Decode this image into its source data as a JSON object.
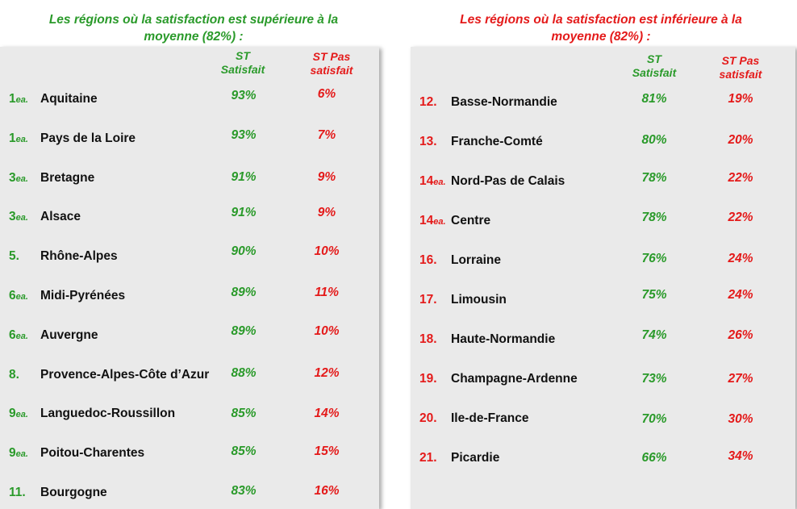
{
  "left": {
    "title_line1": "Les régions où la satisfaction est supérieure à la",
    "title_line2": "moyenne (82%) :",
    "col_satisfait_line1": "ST",
    "col_satisfait_line2": "Satisfait",
    "col_pas_line1": "ST Pas",
    "col_pas_line2": "satisfait",
    "rows": [
      {
        "rank": "1",
        "suffix": "ea.",
        "region": "Aquitaine",
        "satisfait": "93%",
        "pas": "6%"
      },
      {
        "rank": "1",
        "suffix": "ea.",
        "region": "Pays de la Loire",
        "satisfait": "93%",
        "pas": "7%"
      },
      {
        "rank": "3",
        "suffix": "ea.",
        "region": "Bretagne",
        "satisfait": "91%",
        "pas": "9%"
      },
      {
        "rank": "3",
        "suffix": "ea.",
        "region": "Alsace",
        "satisfait": "91%",
        "pas": "9%"
      },
      {
        "rank": "5.",
        "suffix": "",
        "region": "Rhône-Alpes",
        "satisfait": "90%",
        "pas": "10%"
      },
      {
        "rank": "6",
        "suffix": "ea.",
        "region": "Midi-Pyrénées",
        "satisfait": "89%",
        "pas": "11%"
      },
      {
        "rank": "6",
        "suffix": "ea.",
        "region": "Auvergne",
        "satisfait": "89%",
        "pas": "10%"
      },
      {
        "rank": "8.",
        "suffix": "",
        "region": "Provence-Alpes-Côte d’Azur",
        "satisfait": "88%",
        "pas": "12%"
      },
      {
        "rank": "9",
        "suffix": "ea.",
        "region": "Languedoc-Roussillon",
        "satisfait": "85%",
        "pas": "14%"
      },
      {
        "rank": "9",
        "suffix": "ea.",
        "region": "Poitou-Charentes",
        "satisfait": "85%",
        "pas": "15%"
      },
      {
        "rank": "11.",
        "suffix": "",
        "region": "Bourgogne",
        "satisfait": "83%",
        "pas": "16%"
      }
    ]
  },
  "right": {
    "title_line1": "Les régions où la satisfaction est inférieure à la",
    "title_line2": "moyenne (82%) :",
    "col_satisfait_line1": "ST",
    "col_satisfait_line2": "Satisfait",
    "col_pas_line1": "ST Pas",
    "col_pas_line2": "satisfait",
    "rows": [
      {
        "rank": "12.",
        "suffix": "",
        "region": "Basse-Normandie",
        "satisfait": "81%",
        "pas": "19%"
      },
      {
        "rank": "13.",
        "suffix": "",
        "region": "Franche-Comté",
        "satisfait": "80%",
        "pas": "20%"
      },
      {
        "rank": "14",
        "suffix": "ea.",
        "region": "Nord-Pas de Calais",
        "satisfait": "78%",
        "pas": "22%"
      },
      {
        "rank": "14",
        "suffix": "ea.",
        "region": "Centre",
        "satisfait": "78%",
        "pas": "22%"
      },
      {
        "rank": "16.",
        "suffix": "",
        "region": "Lorraine",
        "satisfait": "76%",
        "pas": "24%"
      },
      {
        "rank": "17.",
        "suffix": "",
        "region": "Limousin",
        "satisfait": "75%",
        "pas": "24%"
      },
      {
        "rank": "18.",
        "suffix": "",
        "region": "Haute-Normandie",
        "satisfait": "74%",
        "pas": "26%"
      },
      {
        "rank": "19.",
        "suffix": "",
        "region": "Champagne-Ardenne",
        "satisfait": "73%",
        "pas": "27%"
      },
      {
        "rank": "20.",
        "suffix": "",
        "region": "Ile-de-France",
        "satisfait": "70%",
        "pas": "30%"
      },
      {
        "rank": "21.",
        "suffix": "",
        "region": "Picardie",
        "satisfait": "66%",
        "pas": "34%"
      }
    ]
  }
}
